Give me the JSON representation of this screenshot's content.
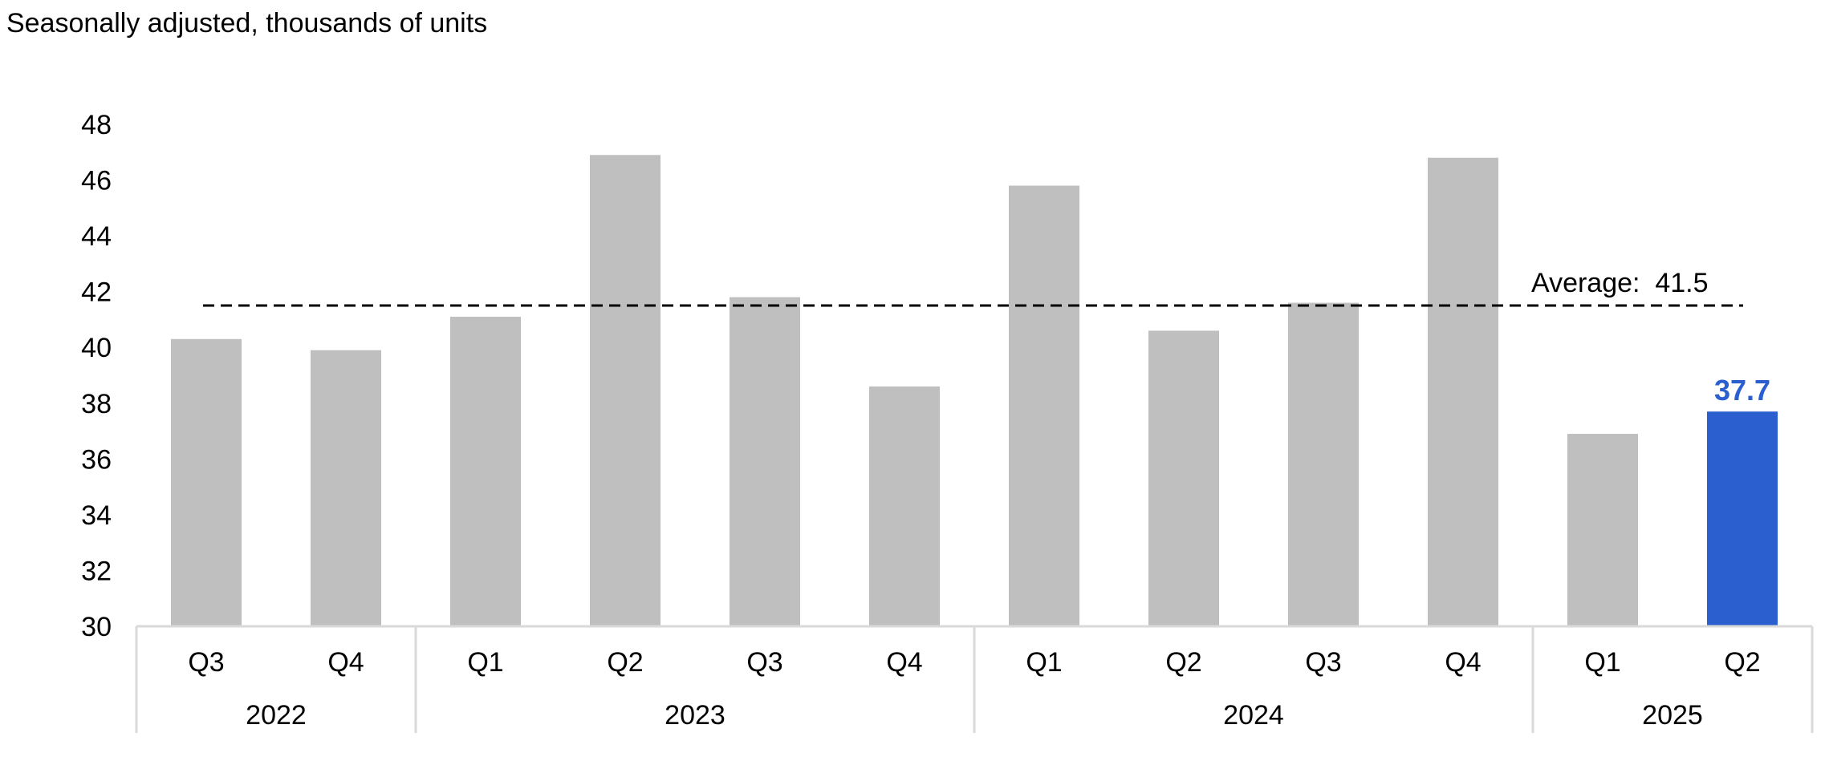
{
  "chart_data": {
    "type": "bar",
    "subtitle": "Seasonally adjusted, thousands of units",
    "categories": [
      "Q3",
      "Q4",
      "Q1",
      "Q2",
      "Q3",
      "Q4",
      "Q1",
      "Q2",
      "Q3",
      "Q4",
      "Q1",
      "Q2"
    ],
    "year_groups": [
      {
        "label": "2022",
        "count": 2
      },
      {
        "label": "2023",
        "count": 4
      },
      {
        "label": "2024",
        "count": 4
      },
      {
        "label": "2025",
        "count": 2
      }
    ],
    "values": [
      40.3,
      39.9,
      41.1,
      46.9,
      41.8,
      38.6,
      45.8,
      40.6,
      41.6,
      46.8,
      36.9,
      37.7
    ],
    "highlight_index": 11,
    "highlight_label": "37.7",
    "average": {
      "label": "Average:  41.5",
      "value": 41.5
    },
    "ylim": [
      30,
      48
    ],
    "yticks": [
      30,
      32,
      34,
      36,
      38,
      40,
      42,
      44,
      46,
      48
    ],
    "grid": false,
    "colors": {
      "bar": "#bfbfbf",
      "highlight": "#2b5fcf",
      "axis": "#d9d9d9",
      "text": "#000000",
      "average_line": "#000000"
    }
  }
}
